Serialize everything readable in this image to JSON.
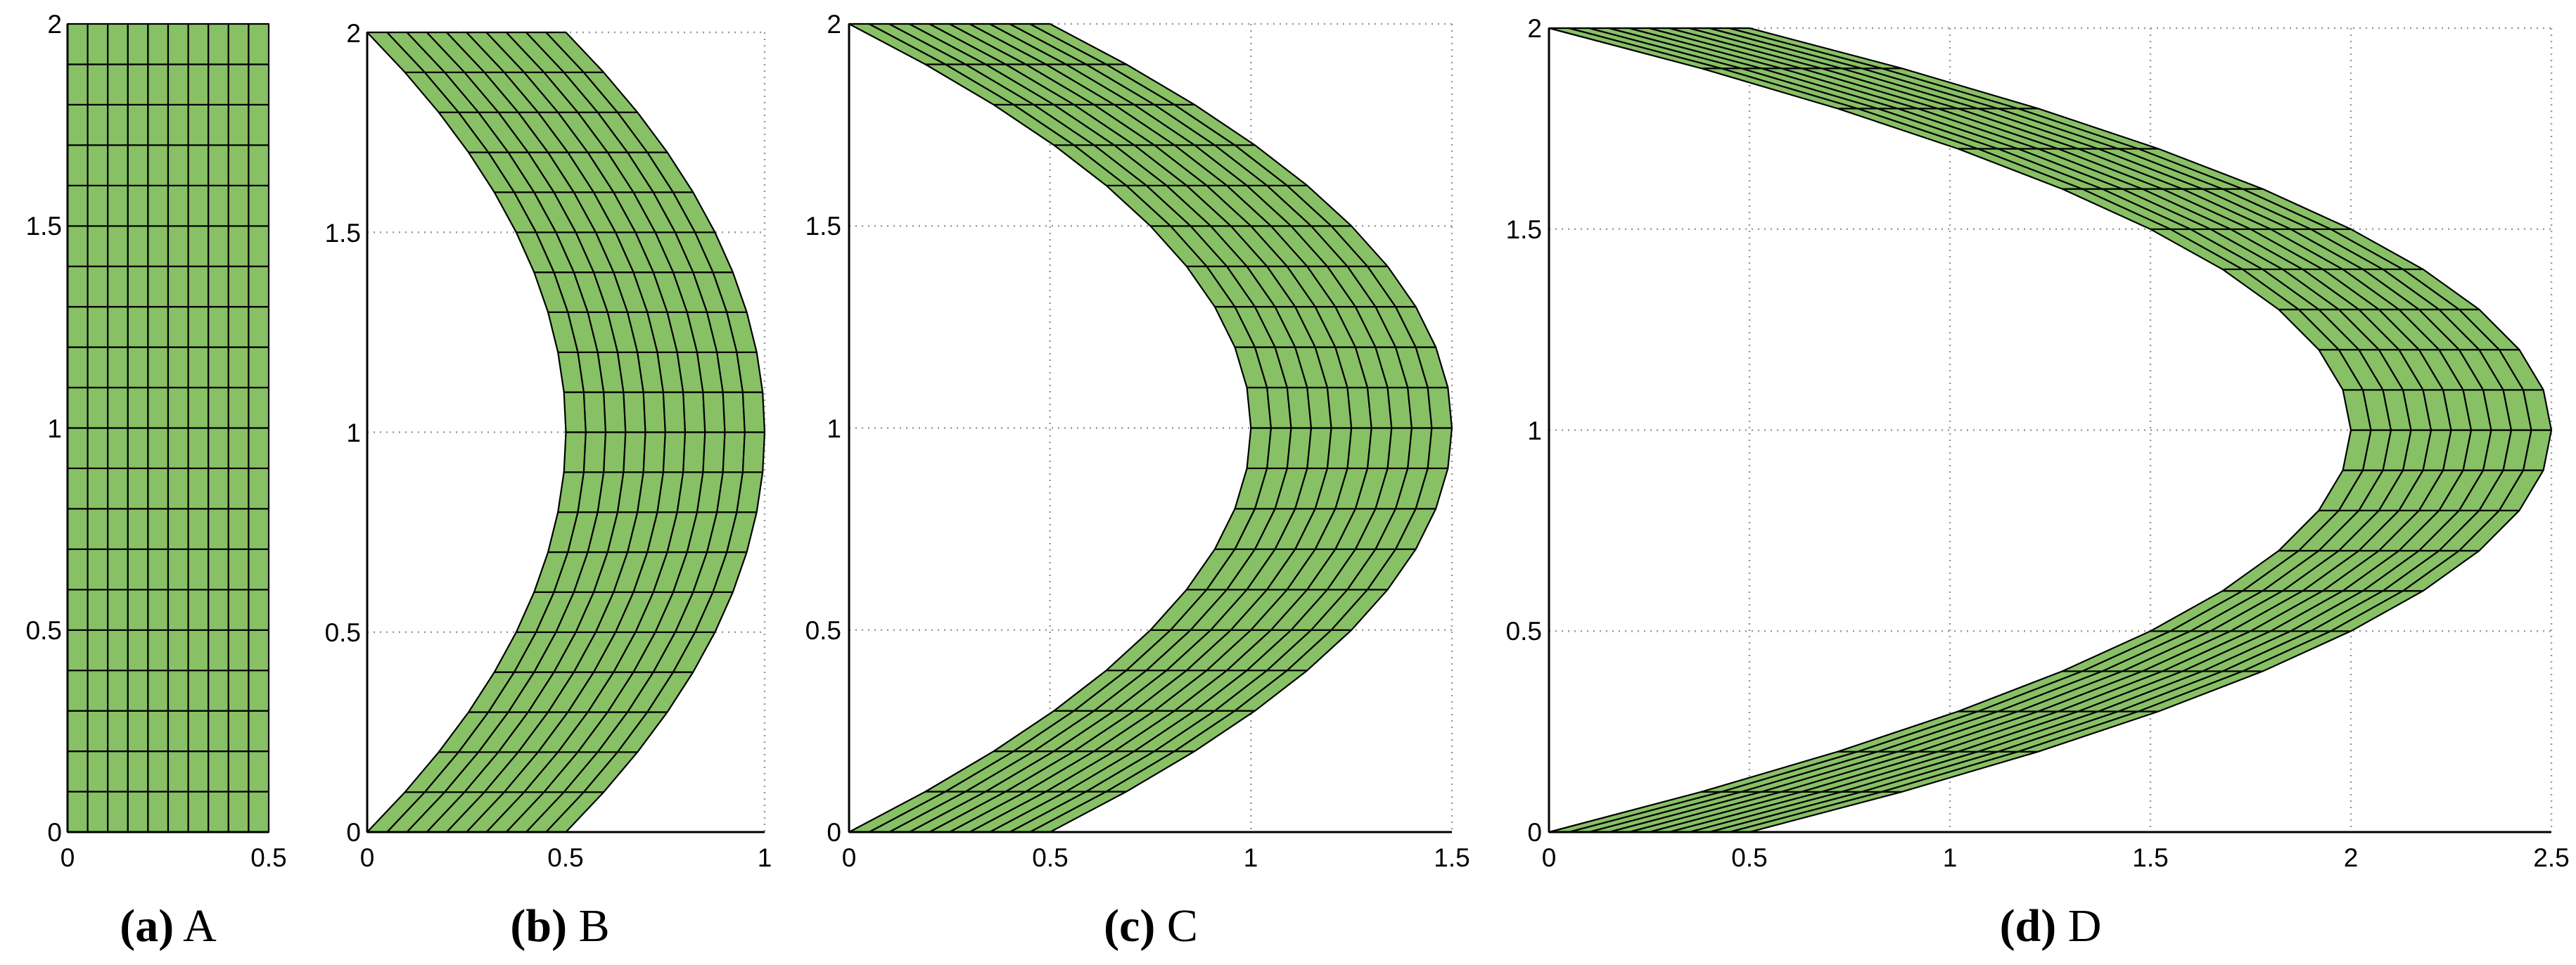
{
  "mesh_color": "#88c065",
  "panels": [
    {
      "id": "a",
      "caption_letter": "(a)",
      "caption_name": "A",
      "x_ticks": [
        "0",
        "0.5"
      ],
      "y_ticks": [
        "0",
        "0.5",
        "1",
        "1.5",
        "2"
      ],
      "xlim": [
        0,
        0.5
      ],
      "ylim": [
        0,
        2
      ],
      "bend": 0,
      "grid": false,
      "cells_x": 10,
      "cells_y": 20
    },
    {
      "id": "b",
      "caption_letter": "(b)",
      "caption_name": "B",
      "x_ticks": [
        "0",
        "0.5",
        "1"
      ],
      "y_ticks": [
        "0",
        "0.5",
        "1",
        "1.5",
        "2"
      ],
      "xlim": [
        0,
        1
      ],
      "ylim": [
        0,
        2
      ],
      "bend": 0.5,
      "grid": true,
      "cells_x": 10,
      "cells_y": 20
    },
    {
      "id": "c",
      "caption_letter": "(c)",
      "caption_name": "C",
      "x_ticks": [
        "0",
        "0.5",
        "1",
        "1.5"
      ],
      "y_ticks": [
        "0",
        "0.5",
        "1",
        "1.5",
        "2"
      ],
      "xlim": [
        0,
        1.5
      ],
      "ylim": [
        0,
        2
      ],
      "bend": 1,
      "grid": true,
      "cells_x": 10,
      "cells_y": 20
    },
    {
      "id": "d",
      "caption_letter": "(d)",
      "caption_name": "D",
      "x_ticks": [
        "0",
        "0.5",
        "1",
        "1.5",
        "2",
        "2.5"
      ],
      "y_ticks": [
        "0",
        "0.5",
        "1",
        "1.5",
        "2"
      ],
      "xlim": [
        0,
        2.5
      ],
      "ylim": [
        0,
        2
      ],
      "bend": 2,
      "grid": true,
      "cells_x": 10,
      "cells_y": 20
    }
  ]
}
